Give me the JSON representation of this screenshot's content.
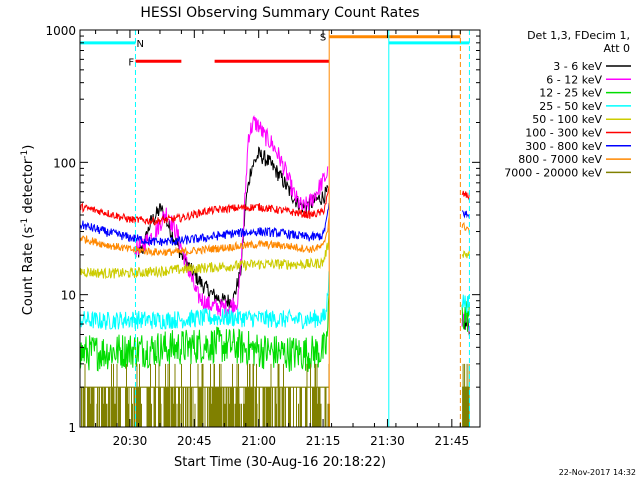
{
  "chart_data": {
    "type": "line",
    "title": "HESSI Observing Summary Count Rates",
    "xlabel": "Start Time (30-Aug-16 20:18:22)",
    "ylabel_main": "Count Rate (s",
    "ylabel_sup1": "-1",
    "ylabel_mid": " detector",
    "ylabel_sup2": "-1",
    "ylabel_end": ")",
    "yscale": "log",
    "xlim": [
      20.3061,
      21.8594
    ],
    "ylim": [
      1,
      1000
    ],
    "xticks": [
      {
        "value": 20.5,
        "label": "20:30"
      },
      {
        "value": 20.75,
        "label": "20:45"
      },
      {
        "value": 21.0,
        "label": "21:00"
      },
      {
        "value": 21.25,
        "label": "21:15"
      },
      {
        "value": 21.5,
        "label": "21:30"
      },
      {
        "value": 21.75,
        "label": "21:45"
      }
    ],
    "yticks": [
      {
        "value": 1,
        "label": "1"
      },
      {
        "value": 10,
        "label": "10"
      },
      {
        "value": 100,
        "label": "100"
      },
      {
        "value": 1000,
        "label": "1000"
      }
    ],
    "legend": {
      "position": "right",
      "header": [
        "Det 1,3, FDecim 1,",
        "Att 0"
      ],
      "entries": [
        {
          "label": "3 - 6 keV",
          "color": "#000000"
        },
        {
          "label": "6 - 12 keV",
          "color": "#ff00ff"
        },
        {
          "label": "12 - 25 keV",
          "color": "#00dd00"
        },
        {
          "label": "25 - 50 keV",
          "color": "#00ffff"
        },
        {
          "label": "50 - 100 keV",
          "color": "#cccc00"
        },
        {
          "label": "100 - 300 keV",
          "color": "#ff0000"
        },
        {
          "label": "300 - 800 keV",
          "color": "#0000ff"
        },
        {
          "label": "800 - 7000 keV",
          "color": "#ff8800"
        },
        {
          "label": "7000 - 20000 keV",
          "color": "#808000"
        }
      ]
    },
    "series": [
      {
        "name": "3 - 6 keV",
        "color": "#000000",
        "noise": 0.06,
        "segments": [
          {
            "x": [
              20.52,
              20.55,
              20.58,
              20.62,
              20.66,
              20.7,
              20.74,
              20.78,
              20.82,
              20.86,
              20.9,
              20.93,
              20.95,
              20.97,
              21.0,
              21.03,
              21.06,
              21.09,
              21.12,
              21.15,
              21.18,
              21.21,
              21.25,
              21.27
            ],
            "y": [
              20,
              22,
              35,
              45,
              30,
              20,
              15,
              12,
              10,
              9,
              9,
              15,
              50,
              90,
              115,
              105,
              90,
              75,
              60,
              50,
              45,
              50,
              55,
              60
            ]
          },
          {
            "x": [
              21.79,
              21.81,
              21.82
            ],
            "y": [
              6,
              6,
              5.5
            ]
          }
        ]
      },
      {
        "name": "6 - 12 keV",
        "color": "#ff00ff",
        "noise": 0.07,
        "segments": [
          {
            "x": [
              20.52,
              20.56,
              20.6,
              20.64,
              20.68,
              20.72,
              20.76,
              20.8,
              20.84,
              20.88,
              20.92,
              20.94,
              20.96,
              20.98,
              21.0,
              21.02,
              21.05,
              21.08,
              21.11,
              21.14,
              21.17,
              21.2,
              21.23,
              21.26,
              21.27
            ],
            "y": [
              22,
              25,
              30,
              42,
              30,
              17,
              10,
              8.5,
              8,
              8,
              9,
              30,
              160,
              200,
              190,
              160,
              140,
              110,
              80,
              55,
              45,
              50,
              62,
              78,
              85
            ]
          },
          {
            "x": [
              21.79,
              21.81,
              21.82
            ],
            "y": [
              6.5,
              6,
              6
            ]
          }
        ]
      },
      {
        "name": "12 - 25 keV",
        "color": "#00dd00",
        "noise": 0.14,
        "segments": [
          {
            "x": [
              20.3061,
              20.4,
              20.5,
              20.6,
              20.7,
              20.8,
              20.9,
              21.0,
              21.1,
              21.2,
              21.26,
              21.27,
              21.275
            ],
            "y": [
              3.6,
              3.7,
              3.8,
              3.9,
              4.0,
              4.2,
              4.1,
              3.8,
              3.6,
              3.6,
              3.8,
              6,
              14
            ]
          },
          {
            "x": [
              21.79,
              21.81,
              21.82
            ],
            "y": [
              7,
              7,
              7
            ]
          }
        ]
      },
      {
        "name": "25 - 50 keV",
        "color": "#00ffff",
        "noise": 0.07,
        "segments": [
          {
            "x": [
              20.3061,
              20.4,
              20.5,
              20.6,
              20.7,
              20.8,
              20.9,
              21.0,
              21.1,
              21.2,
              21.26,
              21.27,
              21.275
            ],
            "y": [
              6.5,
              6.3,
              6.5,
              6.4,
              6.5,
              6.7,
              6.7,
              6.6,
              6.5,
              6.5,
              6.8,
              11,
              22
            ]
          },
          {
            "x": [
              21.79,
              21.81,
              21.82
            ],
            "y": [
              9,
              8.5,
              8.5
            ]
          }
        ]
      },
      {
        "name": "50 - 100 keV",
        "color": "#cccc00",
        "noise": 0.04,
        "segments": [
          {
            "x": [
              20.3061,
              20.4,
              20.5,
              20.6,
              20.7,
              20.8,
              20.9,
              21.0,
              21.1,
              21.2,
              21.25,
              21.27,
              21.275
            ],
            "y": [
              15,
              14.5,
              14.5,
              15,
              15.5,
              16,
              16.5,
              17,
              17,
              17,
              17.5,
              24,
              34
            ]
          },
          {
            "x": [
              21.79,
              21.81,
              21.82
            ],
            "y": [
              21,
              20,
              20
            ]
          }
        ]
      },
      {
        "name": "100 - 300 keV",
        "color": "#ff0000",
        "noise": 0.03,
        "segments": [
          {
            "x": [
              20.3061,
              20.4,
              20.5,
              20.6,
              20.7,
              20.8,
              20.9,
              21.0,
              21.1,
              21.2,
              21.25,
              21.27,
              21.275
            ],
            "y": [
              46,
              42,
              37,
              36,
              38,
              43,
              45,
              46,
              43,
              40,
              42,
              58,
              68
            ]
          },
          {
            "x": [
              21.79,
              21.81,
              21.82
            ],
            "y": [
              58,
              56,
              55
            ]
          }
        ]
      },
      {
        "name": "300 - 800 keV",
        "color": "#0000ff",
        "noise": 0.035,
        "segments": [
          {
            "x": [
              20.3061,
              20.4,
              20.5,
              20.6,
              20.7,
              20.8,
              20.9,
              21.0,
              21.1,
              21.2,
              21.25,
              21.27,
              21.275
            ],
            "y": [
              34,
              30,
              27,
              25,
              25.5,
              27,
              29,
              30,
              29,
              27,
              28,
              42,
              55
            ]
          },
          {
            "x": [
              21.79,
              21.81,
              21.82
            ],
            "y": [
              42,
              40,
              38
            ]
          }
        ]
      },
      {
        "name": "800 - 7000 keV",
        "color": "#ff8800",
        "noise": 0.03,
        "segments": [
          {
            "x": [
              20.3061,
              20.4,
              20.5,
              20.6,
              20.7,
              20.8,
              20.9,
              21.0,
              21.1,
              21.2,
              21.25,
              21.27,
              21.275
            ],
            "y": [
              27,
              24,
              22,
              21,
              21,
              22,
              23,
              24,
              23.5,
              22,
              23,
              33,
              44
            ]
          },
          {
            "x": [
              21.79,
              21.81,
              21.82
            ],
            "y": [
              33,
              32,
              30
            ]
          }
        ]
      },
      {
        "name": "7000 - 20000 keV",
        "color": "#808000",
        "style": "spiky",
        "segments": [
          {
            "x": [
              20.3061,
              21.275
            ],
            "y": [
              2,
              2
            ]
          },
          {
            "x": [
              21.79,
              21.82
            ],
            "y": [
              2,
              2
            ]
          }
        ]
      }
    ],
    "annotations": {
      "flags": [
        {
          "label": "N",
          "color": "#00ffff",
          "value": 800,
          "ranges": [
            [
              20.3061,
              20.5215
            ]
          ],
          "label_x": 20.54
        },
        {
          "label": "F",
          "color": "#ff0000",
          "value": 580,
          "ranges": [
            [
              20.5215,
              20.6997
            ],
            [
              20.8288,
              21.2738
            ]
          ],
          "label_x": 20.505
        },
        {
          "label": "S",
          "color": "#ff8800",
          "value": 890,
          "ranges": [
            [
              21.2738,
              21.7832
            ]
          ],
          "label_x": 21.25
        },
        {
          "label": "",
          "color": "#00ffff",
          "value": 800,
          "ranges": [
            [
              21.5053,
              21.8183
            ]
          ],
          "label_x": 21.5
        }
      ],
      "vlines": [
        {
          "x": 20.3061,
          "color": "#00ffff",
          "style": "solid"
        },
        {
          "x": 20.5215,
          "color": "#00ffff",
          "style": "dashed"
        },
        {
          "x": 21.2738,
          "color": "#ff8800",
          "style": "solid"
        },
        {
          "x": 21.5053,
          "color": "#00ffff",
          "style": "solid"
        },
        {
          "x": 21.7832,
          "color": "#ff8800",
          "style": "dashed"
        },
        {
          "x": 21.8183,
          "color": "#00ffff",
          "style": "dashed"
        }
      ]
    },
    "footer_date": "22-Nov-2017 14:32"
  }
}
